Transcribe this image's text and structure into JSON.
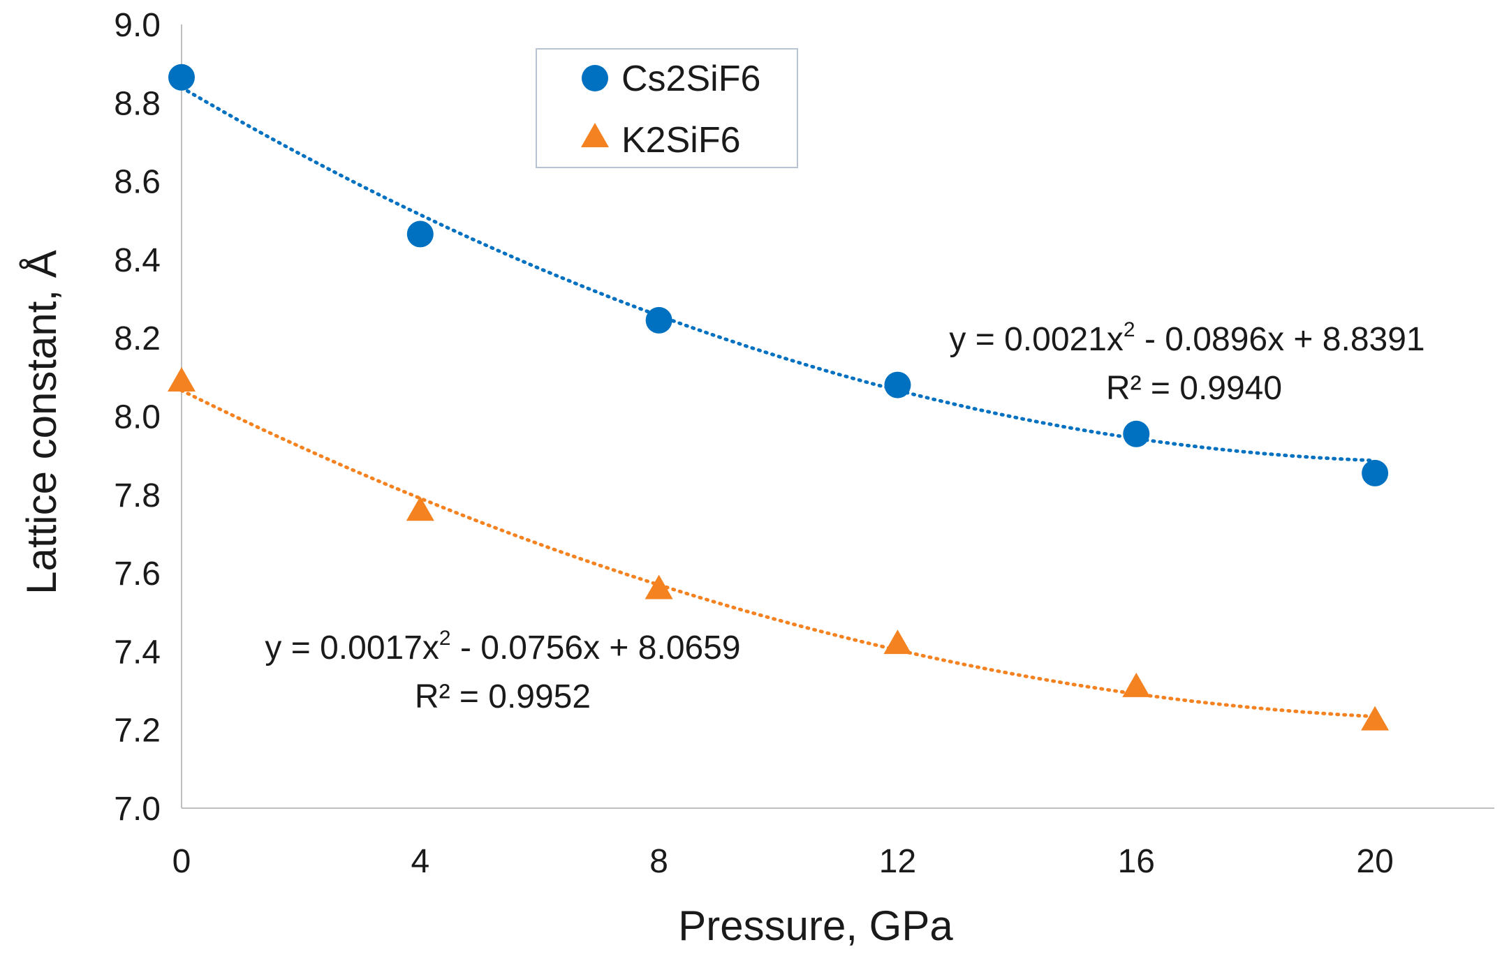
{
  "chart_data": {
    "type": "scatter",
    "title": "",
    "xlabel": "Pressure, GPa",
    "ylabel": "Lattice constant, Å",
    "xlim": [
      0,
      22
    ],
    "ylim": [
      7.0,
      9.0
    ],
    "x_ticks": [
      "0",
      "4",
      "8",
      "12",
      "16",
      "20"
    ],
    "x_tick_values": [
      0,
      4,
      8,
      12,
      16,
      20
    ],
    "y_ticks": [
      "7.0",
      "7.2",
      "7.4",
      "7.6",
      "7.8",
      "8.0",
      "8.2",
      "8.4",
      "8.6",
      "8.8",
      "9.0"
    ],
    "y_tick_values": [
      7.0,
      7.2,
      7.4,
      7.6,
      7.8,
      8.0,
      8.2,
      8.4,
      8.6,
      8.8,
      9.0
    ],
    "grid": false,
    "legend_position": "top-left",
    "series": [
      {
        "name": "Cs2SiF6",
        "marker": "circle",
        "color": "#0070C0",
        "x": [
          0,
          4,
          8,
          12,
          16,
          20
        ],
        "y": [
          8.865,
          8.465,
          8.245,
          8.08,
          7.955,
          7.855
        ],
        "trendline": {
          "type": "polynomial",
          "coefficients": [
            0.0021,
            -0.0896,
            8.8391
          ],
          "equation": "y = 0.0021x",
          "equation_exponent": "2",
          "equation_rest": " - 0.0896x + 8.8391",
          "r_squared": "R² = 0.9940"
        }
      },
      {
        "name": "K2SiF6",
        "marker": "triangle",
        "color": "#F58220",
        "x": [
          0,
          4,
          8,
          12,
          16,
          20
        ],
        "y": [
          8.09,
          7.76,
          7.56,
          7.42,
          7.31,
          7.225
        ],
        "trendline": {
          "type": "polynomial",
          "coefficients": [
            0.0017,
            -0.0756,
            8.0659
          ],
          "equation": "y = 0.0017x",
          "equation_exponent": "2",
          "equation_rest": " - 0.0756x + 8.0659",
          "r_squared": "R² = 0.9952"
        }
      }
    ]
  }
}
